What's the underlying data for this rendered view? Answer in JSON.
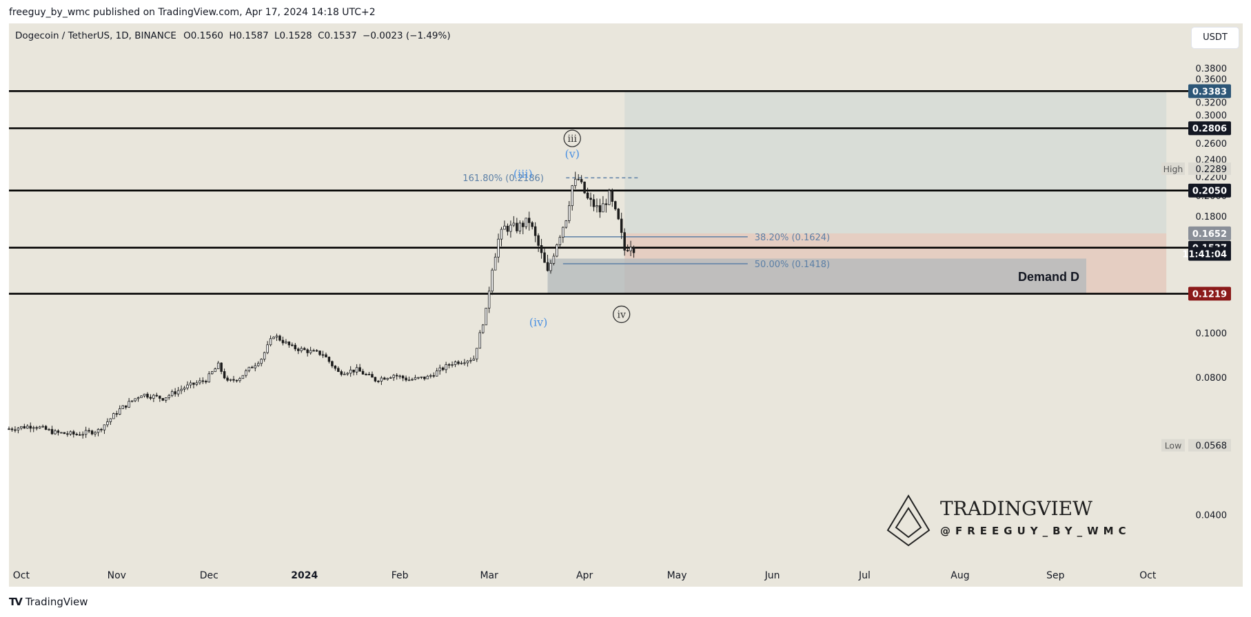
{
  "header": {
    "publisher_line": "freeguy_by_wmc published on TradingView.com, Apr 17, 2024 14:18 UTC+2"
  },
  "legend": {
    "symbol_line": "Dogecoin / TetherUS, 1D, BINANCE",
    "open": "O0.1560",
    "high": "H0.1587",
    "low": "L0.1528",
    "close": "C0.1537",
    "change": "−0.0023 (−1.49%)"
  },
  "currency_button": "USDT",
  "footer": {
    "brand": "TradingView"
  },
  "watermark": {
    "title": "TRADINGVIEW",
    "handle": "@FREEGUY_BY_WMC"
  },
  "colors": {
    "background": "#e9e6dc",
    "candle": "#1b1b1b",
    "fib_blue": "#5b7fa6",
    "wave_blue": "#4a90e2",
    "target_zone": "#d7dbd6",
    "stop_zone": "#e4c9bd",
    "demand_zone": "#b2b8bb",
    "price_label_blue": "#2c5677",
    "price_label_dark": "#131722",
    "price_label_red": "#8b1a1a"
  },
  "chart_data": {
    "type": "candlestick",
    "symbol": "Dogecoin / TetherUS",
    "interval": "1D",
    "exchange": "BINANCE",
    "y_axis": {
      "ticks": [
        "0.3800",
        "0.3600",
        "0.3200",
        "0.3000",
        "0.2600",
        "0.2400",
        "0.2200",
        "0.2000",
        "0.1800",
        "0.1000",
        "0.0800",
        "0.0400"
      ],
      "tick_values": [
        0.38,
        0.36,
        0.32,
        0.3,
        0.26,
        0.24,
        0.22,
        0.2,
        0.18,
        0.1,
        0.08,
        0.04
      ],
      "scale": "log",
      "ylim": [
        0.032,
        0.42
      ]
    },
    "x_axis": {
      "labels": [
        "Oct",
        "Nov",
        "Dec",
        "2024",
        "Feb",
        "Mar",
        "Apr",
        "May",
        "Jun",
        "Jul",
        "Aug",
        "Sep",
        "Oct"
      ],
      "label_dates": [
        "2023-10-01",
        "2023-11-01",
        "2023-12-01",
        "2024-01-01",
        "2024-02-01",
        "2024-03-01",
        "2024-04-01",
        "2024-05-01",
        "2024-06-01",
        "2024-07-01",
        "2024-08-01",
        "2024-09-01",
        "2024-10-01"
      ],
      "bold_label": "2024",
      "xlim": [
        "2023-09-27",
        "2024-10-11"
      ]
    },
    "horizontal_lines": [
      0.3383,
      0.2806,
      0.205,
      0.1537,
      0.1219
    ],
    "price_labels": [
      {
        "text": "0.3383",
        "value": 0.3383,
        "style": "blue"
      },
      {
        "text": "0.2806",
        "value": 0.2806,
        "style": "dark"
      },
      {
        "text": "0.2050",
        "value": 0.205,
        "style": "dark"
      },
      {
        "text": "0.1652",
        "value": 0.1652,
        "style": "gray"
      },
      {
        "text": "0.1537",
        "value": 0.1537,
        "style": "dark"
      },
      {
        "text": "11:41:04",
        "value": 0.149,
        "style": "dark"
      },
      {
        "text": "0.1219",
        "value": 0.1219,
        "style": "red"
      }
    ],
    "high_low": [
      {
        "tag": "High",
        "text": "0.2289",
        "value": 0.2289
      },
      {
        "tag": "Low",
        "text": "0.0568",
        "value": 0.0568
      }
    ],
    "position_tool": {
      "start": "2024-04-14",
      "end": "2024-10-07",
      "entry": 0.1652,
      "target": 0.3383,
      "stop": 0.1219
    },
    "demand_zone": {
      "label": "Demand D",
      "start": "2024-03-20",
      "end": "2024-09-11",
      "top": 0.1455,
      "bottom": 0.1219
    },
    "fib_levels": [
      {
        "label": "161.80% (0.2186)",
        "value": 0.2186,
        "start": "2024-03-26",
        "end": "2024-04-19",
        "dashed": true
      },
      {
        "label": "38.20% (0.1624)",
        "value": 0.1624,
        "start": "2024-03-25",
        "end": "2024-05-24",
        "dashed": false
      },
      {
        "label": "50.00% (0.1418)",
        "value": 0.1418,
        "start": "2024-03-25",
        "end": "2024-05-24",
        "dashed": false
      }
    ],
    "wave_labels": [
      {
        "text": "iii",
        "date": "2024-03-28",
        "value": 0.262,
        "circled": true,
        "color": "dark"
      },
      {
        "text": "(v)",
        "date": "2024-03-28",
        "value": 0.242,
        "circled": false,
        "color": "blue"
      },
      {
        "text": "(iii)",
        "date": "2024-03-12",
        "value": 0.2186,
        "circled": false,
        "color": "blue"
      },
      {
        "text": "(iv)",
        "date": "2024-03-17",
        "value": 0.1035,
        "circled": false,
        "color": "blue"
      },
      {
        "text": "iv",
        "date": "2024-04-13",
        "value": 0.108,
        "circled": true,
        "color": "dark"
      }
    ],
    "waypoints": [
      [
        "2023-09-27",
        0.0617
      ],
      [
        "2023-10-05",
        0.0627
      ],
      [
        "2023-10-12",
        0.0605
      ],
      [
        "2023-10-19",
        0.06
      ],
      [
        "2023-10-26",
        0.0612
      ],
      [
        "2023-11-02",
        0.068
      ],
      [
        "2023-11-09",
        0.0735
      ],
      [
        "2023-11-16",
        0.072
      ],
      [
        "2023-11-23",
        0.076
      ],
      [
        "2023-11-30",
        0.079
      ],
      [
        "2023-12-04",
        0.085
      ],
      [
        "2023-12-07",
        0.078
      ],
      [
        "2023-12-11",
        0.08
      ],
      [
        "2023-12-18",
        0.088
      ],
      [
        "2023-12-22",
        0.099
      ],
      [
        "2023-12-28",
        0.093
      ],
      [
        "2024-01-03",
        0.091
      ],
      [
        "2024-01-07",
        0.09
      ],
      [
        "2024-01-12",
        0.082
      ],
      [
        "2024-01-18",
        0.083
      ],
      [
        "2024-01-24",
        0.079
      ],
      [
        "2024-01-30",
        0.081
      ],
      [
        "2024-02-04",
        0.079
      ],
      [
        "2024-02-10",
        0.08
      ],
      [
        "2024-02-18",
        0.086
      ],
      [
        "2024-02-25",
        0.088
      ],
      [
        "2024-02-29",
        0.112
      ],
      [
        "2024-03-02",
        0.14
      ],
      [
        "2024-03-04",
        0.16
      ],
      [
        "2024-03-06",
        0.17
      ],
      [
        "2024-03-10",
        0.17
      ],
      [
        "2024-03-14",
        0.176
      ],
      [
        "2024-03-17",
        0.155
      ],
      [
        "2024-03-20",
        0.135
      ],
      [
        "2024-03-23",
        0.158
      ],
      [
        "2024-03-26",
        0.179
      ],
      [
        "2024-03-28",
        0.21
      ],
      [
        "2024-03-30",
        0.217
      ],
      [
        "2024-04-02",
        0.196
      ],
      [
        "2024-04-06",
        0.185
      ],
      [
        "2024-04-09",
        0.2
      ],
      [
        "2024-04-12",
        0.175
      ],
      [
        "2024-04-14",
        0.152
      ],
      [
        "2024-04-16",
        0.157
      ],
      [
        "2024-04-17",
        0.1537
      ]
    ]
  }
}
